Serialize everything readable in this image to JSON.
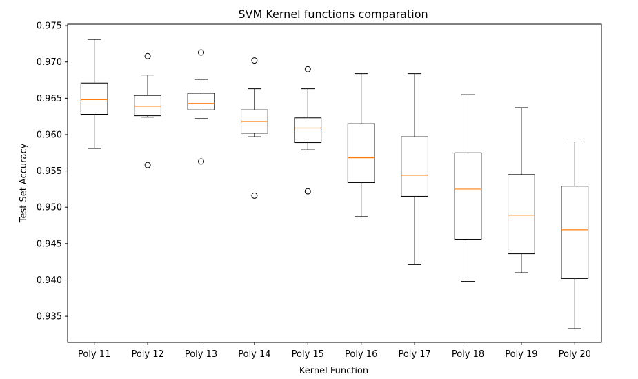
{
  "chart_data": {
    "type": "box",
    "title": "SVM Kernel functions comparation",
    "xlabel": "Kernel Function",
    "ylabel": "Test Set Accuracy",
    "ylim": [
      0.9314,
      0.9752
    ],
    "yticks": [
      "0.935",
      "0.940",
      "0.945",
      "0.950",
      "0.955",
      "0.960",
      "0.965",
      "0.970",
      "0.975"
    ],
    "ytick_values": [
      0.935,
      0.94,
      0.945,
      0.95,
      0.955,
      0.96,
      0.965,
      0.97,
      0.975
    ],
    "grid": false,
    "colors": {
      "box": "#000000",
      "median": "#ff7f0e"
    },
    "categories": [
      "Poly 11",
      "Poly 12",
      "Poly 13",
      "Poly 14",
      "Poly 15",
      "Poly 16",
      "Poly 17",
      "Poly 18",
      "Poly 19",
      "Poly 20"
    ],
    "boxes": [
      {
        "whisker_low": 0.9581,
        "q1": 0.9628,
        "median": 0.9648,
        "q3": 0.9671,
        "whisker_high": 0.9731,
        "fliers": []
      },
      {
        "whisker_low": 0.9624,
        "q1": 0.9626,
        "median": 0.9639,
        "q3": 0.9654,
        "whisker_high": 0.9682,
        "fliers": [
          0.9708,
          0.9558
        ]
      },
      {
        "whisker_low": 0.9622,
        "q1": 0.9634,
        "median": 0.9643,
        "q3": 0.9657,
        "whisker_high": 0.9676,
        "fliers": [
          0.9713,
          0.9563
        ]
      },
      {
        "whisker_low": 0.9597,
        "q1": 0.9602,
        "median": 0.9618,
        "q3": 0.9634,
        "whisker_high": 0.9663,
        "fliers": [
          0.9702,
          0.9516
        ]
      },
      {
        "whisker_low": 0.9579,
        "q1": 0.9589,
        "median": 0.9609,
        "q3": 0.9623,
        "whisker_high": 0.9663,
        "fliers": [
          0.969,
          0.9522
        ]
      },
      {
        "whisker_low": 0.9487,
        "q1": 0.9534,
        "median": 0.9568,
        "q3": 0.9615,
        "whisker_high": 0.9684,
        "fliers": []
      },
      {
        "whisker_low": 0.9421,
        "q1": 0.9515,
        "median": 0.9544,
        "q3": 0.9597,
        "whisker_high": 0.9684,
        "fliers": []
      },
      {
        "whisker_low": 0.9398,
        "q1": 0.9456,
        "median": 0.9525,
        "q3": 0.9575,
        "whisker_high": 0.9655,
        "fliers": []
      },
      {
        "whisker_low": 0.941,
        "q1": 0.9436,
        "median": 0.9489,
        "q3": 0.9545,
        "whisker_high": 0.9637,
        "fliers": []
      },
      {
        "whisker_low": 0.9333,
        "q1": 0.9402,
        "median": 0.9469,
        "q3": 0.9529,
        "whisker_high": 0.959,
        "fliers": []
      }
    ]
  }
}
